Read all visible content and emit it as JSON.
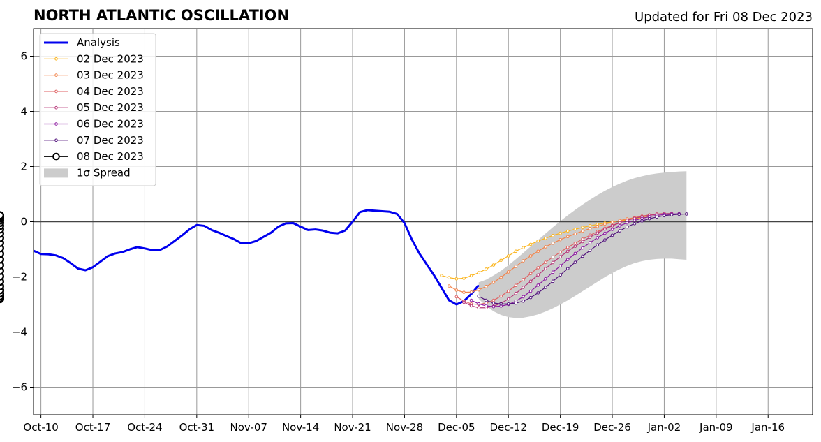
{
  "chart_data": {
    "type": "line",
    "title": "NORTH ATLANTIC OSCILLATION",
    "subtitle": "Updated for Fri 08 Dec 2023",
    "xlabel": "",
    "ylabel": "",
    "xlim": [
      "2023-10-09",
      "2024-01-22"
    ],
    "ylim": [
      -7,
      7
    ],
    "grid": true,
    "legend_position": "top-left",
    "x_ticks": [
      "2023-10-10",
      "2023-10-17",
      "2023-10-24",
      "2023-10-31",
      "2023-11-07",
      "2023-11-14",
      "2023-11-21",
      "2023-11-28",
      "2023-12-05",
      "2023-12-12",
      "2023-12-19",
      "2023-12-26",
      "2024-01-02",
      "2024-01-09",
      "2024-01-16"
    ],
    "x_tick_labels": [
      "Oct-10",
      "Oct-17",
      "Oct-24",
      "Oct-31",
      "Nov-07",
      "Nov-14",
      "Nov-21",
      "Nov-28",
      "Dec-05",
      "Dec-12",
      "Dec-19",
      "Dec-26",
      "Jan-02",
      "Jan-09",
      "Jan-16"
    ],
    "y_ticks": [
      -6,
      -4,
      -2,
      0,
      2,
      4,
      6
    ],
    "y_tick_labels": [
      "−6",
      "−4",
      "−2",
      "0",
      "2",
      "4",
      "6"
    ],
    "analysis": {
      "name": "Analysis",
      "color": "#0000ee",
      "x": [
        "2023-10-09",
        "2023-10-10",
        "2023-10-11",
        "2023-10-12",
        "2023-10-13",
        "2023-10-14",
        "2023-10-15",
        "2023-10-16",
        "2023-10-17",
        "2023-10-18",
        "2023-10-19",
        "2023-10-20",
        "2023-10-21",
        "2023-10-22",
        "2023-10-23",
        "2023-10-24",
        "2023-10-25",
        "2023-10-26",
        "2023-10-27",
        "2023-10-28",
        "2023-10-29",
        "2023-10-30",
        "2023-10-31",
        "2023-11-01",
        "2023-11-02",
        "2023-11-03",
        "2023-11-04",
        "2023-11-05",
        "2023-11-06",
        "2023-11-07",
        "2023-11-08",
        "2023-11-09",
        "2023-11-10",
        "2023-11-11",
        "2023-11-12",
        "2023-11-13",
        "2023-11-14",
        "2023-11-15",
        "2023-11-16",
        "2023-11-17",
        "2023-11-18",
        "2023-11-19",
        "2023-11-20",
        "2023-11-21",
        "2023-11-22",
        "2023-11-23",
        "2023-11-24",
        "2023-11-25",
        "2023-11-26",
        "2023-11-27",
        "2023-11-28",
        "2023-11-29",
        "2023-11-30",
        "2023-12-01",
        "2023-12-02",
        "2023-12-03",
        "2023-12-04",
        "2023-12-05",
        "2023-12-06",
        "2023-12-07",
        "2023-12-08"
      ],
      "values": [
        -1.05,
        -1.17,
        -1.18,
        -1.22,
        -1.32,
        -1.5,
        -1.7,
        -1.76,
        -1.65,
        -1.45,
        -1.25,
        -1.15,
        -1.1,
        -1.0,
        -0.92,
        -0.97,
        -1.03,
        -1.03,
        -0.9,
        -0.7,
        -0.5,
        -0.28,
        -0.12,
        -0.15,
        -0.3,
        -0.4,
        -0.52,
        -0.63,
        -0.78,
        -0.78,
        -0.7,
        -0.55,
        -0.4,
        -0.18,
        -0.06,
        -0.05,
        -0.18,
        -0.3,
        -0.28,
        -0.32,
        -0.4,
        -0.42,
        -0.32,
        0.0,
        0.35,
        0.42,
        0.4,
        0.38,
        0.36,
        0.28,
        -0.05,
        -0.65,
        -1.15,
        -1.55,
        -1.95,
        -2.4,
        -2.85,
        -3.0,
        -2.88,
        -2.62,
        -2.3
      ]
    },
    "forecast_start": [
      "2023-12-03",
      "2023-12-04",
      "2023-12-05",
      "2023-12-06",
      "2023-12-07",
      "2023-12-08"
    ],
    "forecast_length": 29,
    "forecasts": [
      {
        "name": "02 Dec 2023",
        "color": "#fbb41b",
        "values": [
          -1.95,
          -2.03,
          -2.07,
          -2.05,
          -1.96,
          -1.85,
          -1.72,
          -1.57,
          -1.4,
          -1.24,
          -1.07,
          -0.94,
          -0.82,
          -0.7,
          -0.6,
          -0.5,
          -0.42,
          -0.34,
          -0.27,
          -0.21,
          -0.15,
          -0.1,
          -0.05,
          -0.01,
          0.03,
          0.07,
          0.11,
          0.15,
          0.18
        ]
      },
      {
        "name": "03 Dec 2023",
        "color": "#f2844b",
        "values": [
          -2.33,
          -2.48,
          -2.56,
          -2.55,
          -2.47,
          -2.35,
          -2.2,
          -2.02,
          -1.82,
          -1.62,
          -1.42,
          -1.24,
          -1.07,
          -0.91,
          -0.78,
          -0.65,
          -0.54,
          -0.44,
          -0.34,
          -0.25,
          -0.17,
          -0.09,
          -0.02,
          0.04,
          0.1,
          0.15,
          0.2,
          0.24,
          0.27
        ]
      },
      {
        "name": "04 Dec 2023",
        "color": "#df6263",
        "values": [
          -2.72,
          -2.88,
          -2.98,
          -3.0,
          -2.95,
          -2.85,
          -2.7,
          -2.52,
          -2.31,
          -2.1,
          -1.88,
          -1.67,
          -1.47,
          -1.28,
          -1.1,
          -0.93,
          -0.78,
          -0.63,
          -0.49,
          -0.36,
          -0.24,
          -0.13,
          -0.03,
          0.06,
          0.14,
          0.2,
          0.25,
          0.28,
          0.3
        ]
      },
      {
        "name": "05 Dec 2023",
        "color": "#b73779",
        "values": [
          -2.92,
          -3.05,
          -3.12,
          -3.12,
          -3.06,
          -2.96,
          -2.8,
          -2.6,
          -2.38,
          -2.16,
          -1.93,
          -1.7,
          -1.48,
          -1.27,
          -1.07,
          -0.89,
          -0.72,
          -0.56,
          -0.41,
          -0.27,
          -0.15,
          -0.04,
          0.05,
          0.12,
          0.18,
          0.23,
          0.27,
          0.29,
          0.3
        ]
      },
      {
        "name": "06 Dec 2023",
        "color": "#8c1aa0",
        "values": [
          -2.85,
          -2.98,
          -3.05,
          -3.08,
          -3.06,
          -3.0,
          -2.88,
          -2.72,
          -2.52,
          -2.3,
          -2.07,
          -1.83,
          -1.6,
          -1.37,
          -1.15,
          -0.95,
          -0.76,
          -0.58,
          -0.42,
          -0.28,
          -0.15,
          -0.04,
          0.05,
          0.12,
          0.18,
          0.23,
          0.26,
          0.28,
          0.29
        ]
      },
      {
        "name": "07 Dec 2023",
        "color": "#51127c",
        "values": [
          -2.7,
          -2.85,
          -2.95,
          -2.98,
          -2.98,
          -2.95,
          -2.88,
          -2.75,
          -2.58,
          -2.38,
          -2.16,
          -1.93,
          -1.7,
          -1.47,
          -1.25,
          -1.04,
          -0.84,
          -0.66,
          -0.49,
          -0.33,
          -0.19,
          -0.07,
          0.03,
          0.11,
          0.17,
          0.22,
          0.25,
          0.27,
          0.28
        ]
      },
      {
        "name": "08 Dec 2023",
        "color": "#000000",
        "values": [
          -2.5,
          -2.62,
          -2.72,
          -2.78,
          -2.8,
          -2.77,
          -2.7,
          -2.6,
          -2.48,
          -2.34,
          -2.17,
          -1.98,
          -1.78,
          -1.58,
          -1.37,
          -1.16,
          -0.96,
          -0.77,
          -0.59,
          -0.43,
          -0.28,
          -0.15,
          -0.04,
          0.05,
          0.12,
          0.17,
          0.2,
          0.22,
          0.23
        ]
      }
    ],
    "spread": {
      "name": "1σ Spread",
      "color": "#cccccc",
      "x_start": "2023-12-08",
      "x_end": "2024-01-05",
      "upper": [
        -2.2,
        -2.1,
        -1.95,
        -1.78,
        -1.58,
        -1.36,
        -1.13,
        -0.9,
        -0.66,
        -0.43,
        -0.2,
        0.02,
        0.23,
        0.43,
        0.62,
        0.8,
        0.97,
        1.12,
        1.26,
        1.38,
        1.49,
        1.58,
        1.65,
        1.71,
        1.75,
        1.78,
        1.8,
        1.82,
        1.83
      ],
      "lower": [
        -2.8,
        -3.05,
        -3.25,
        -3.38,
        -3.46,
        -3.49,
        -3.48,
        -3.43,
        -3.36,
        -3.26,
        -3.14,
        -3.0,
        -2.85,
        -2.69,
        -2.52,
        -2.35,
        -2.18,
        -2.01,
        -1.86,
        -1.72,
        -1.6,
        -1.5,
        -1.43,
        -1.38,
        -1.35,
        -1.34,
        -1.34,
        -1.36,
        -1.38
      ]
    }
  }
}
